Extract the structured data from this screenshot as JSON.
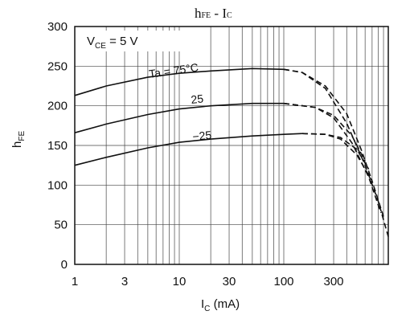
{
  "chart_data": {
    "type": "line",
    "title_main": "h",
    "title_sub": "FE",
    "title_rest": " - I",
    "title_sub2": "C",
    "xlabel_main": "I",
    "xlabel_sub": "C",
    "xlabel_unit": " (mA)",
    "ylabel_main": "h",
    "ylabel_sub": "FE",
    "x_scale": "log",
    "xlim": [
      1,
      1000
    ],
    "ylim": [
      0,
      300
    ],
    "x_ticks": [
      1,
      3,
      10,
      30,
      100,
      300
    ],
    "x_tick_labels": [
      "1",
      "3",
      "10",
      "30",
      "100",
      "300"
    ],
    "y_ticks": [
      0,
      50,
      100,
      150,
      200,
      250,
      300
    ],
    "y_tick_labels": [
      "0",
      "50",
      "100",
      "150",
      "200",
      "250",
      "300"
    ],
    "grid": true,
    "condition": {
      "main": "V",
      "sub": "CE",
      "rest": " = 5 V"
    },
    "series": [
      {
        "name": "Ta = 75°C",
        "solid": {
          "x": [
            1,
            2,
            5,
            10,
            20,
            50,
            100
          ],
          "y": [
            213,
            225,
            236,
            241,
            244,
            247,
            246
          ]
        },
        "dashed": [
          {
            "x": [
              100,
              150,
              250,
              400,
              600,
              800,
              1000
            ],
            "y": [
              246,
              242,
              222,
              178,
              125,
              80,
              35
            ]
          },
          {
            "x": [
              100,
              150,
              250,
              400,
              550,
              700
            ],
            "y": [
              246,
              242,
              225,
              190,
              145,
              105
            ]
          }
        ]
      },
      {
        "name": "25",
        "solid": {
          "x": [
            1,
            2,
            5,
            10,
            20,
            50,
            100
          ],
          "y": [
            166,
            177,
            189,
            196,
            200,
            203,
            203
          ]
        },
        "dashed": [
          {
            "x": [
              100,
              200,
              300,
              450,
              650,
              850
            ],
            "y": [
              203,
              198,
              185,
              153,
              110,
              65
            ]
          },
          {
            "x": [
              100,
              200,
              300,
              450,
              600
            ],
            "y": [
              203,
              198,
              188,
              162,
              130
            ]
          }
        ]
      },
      {
        "name": "−25",
        "solid": {
          "x": [
            1,
            2,
            5,
            10,
            20,
            50,
            100,
            150
          ],
          "y": [
            125,
            135,
            147,
            154,
            158,
            162,
            164,
            165
          ]
        },
        "dashed": [
          {
            "x": [
              150,
              250,
              350,
              500,
              700,
              900
            ],
            "y": [
              165,
              164,
              158,
              138,
              105,
              60
            ]
          },
          {
            "x": [
              150,
              250,
              350,
              500,
              650
            ],
            "y": [
              165,
              164,
              160,
              145,
              120
            ]
          }
        ]
      }
    ]
  }
}
